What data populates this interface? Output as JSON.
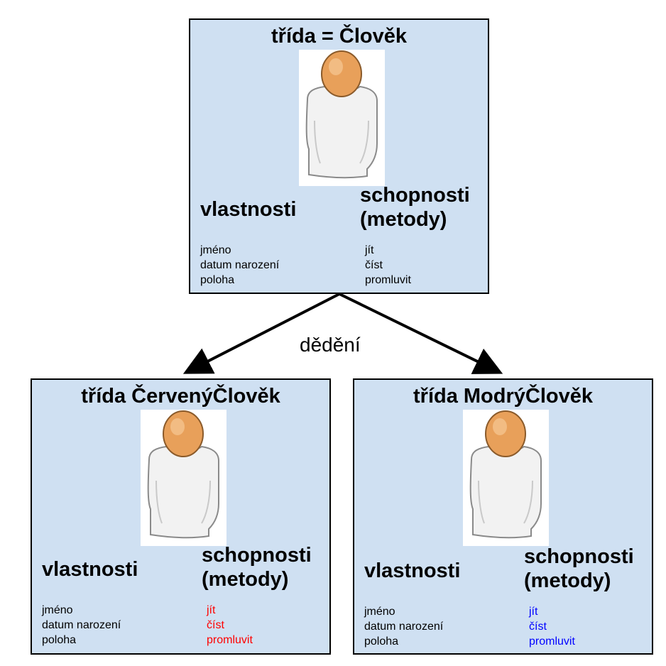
{
  "diagram": {
    "inheritance_label": "dědění",
    "headings": {
      "properties": "vlastnosti",
      "methods_line1": "schopnosti",
      "methods_line2": "(metody)"
    },
    "parent": {
      "title": "třída = Člověk",
      "properties": [
        "jméno",
        "datum narození",
        "poloha"
      ],
      "methods": [
        "jít",
        "číst",
        "promluvit"
      ],
      "methods_color": "#000000"
    },
    "child_red": {
      "title": "třída ČervenýČlověk",
      "properties": [
        "jméno",
        "datum narození",
        "poloha"
      ],
      "methods": [
        "jít",
        "číst",
        "promluvit"
      ],
      "methods_color": "#ff0000"
    },
    "child_blue": {
      "title": "třída ModrýČlověk",
      "properties": [
        "jméno",
        "datum narození",
        "poloha"
      ],
      "methods": [
        "jít",
        "číst",
        "promluvit"
      ],
      "methods_color": "#0000ff"
    },
    "colors": {
      "box_fill": "#cfe0f2",
      "border": "#000000",
      "avatar_head": "#e8a05a",
      "avatar_body": "#f2f2f2"
    },
    "icons": {
      "avatar": "person-icon"
    }
  }
}
